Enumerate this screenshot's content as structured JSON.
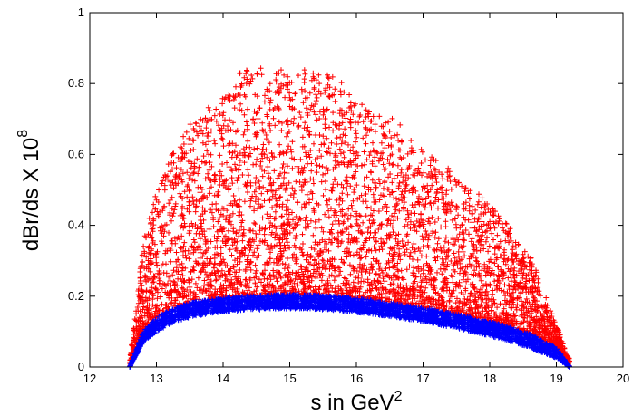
{
  "chart_data": {
    "type": "scatter",
    "title": "",
    "xlabel": "s in GeV",
    "xlabel_superscript": "2",
    "ylabel": "dBr/ds X  10",
    "ylabel_superscript": "8",
    "xlim": [
      12,
      20
    ],
    "ylim": [
      0,
      1
    ],
    "x_ticks": [
      12,
      13,
      14,
      15,
      16,
      17,
      18,
      19,
      20
    ],
    "y_ticks": [
      0,
      0.2,
      0.4,
      0.6,
      0.8,
      1
    ],
    "x_tick_labels": [
      "12",
      "13",
      "14",
      "15",
      "16",
      "17",
      "18",
      "19",
      "20"
    ],
    "y_tick_labels": [
      "0",
      "0.2",
      "0.4",
      "0.6",
      "0.8",
      "1"
    ],
    "grid": false,
    "legend": "none",
    "marker": "+",
    "s_min": 12.6,
    "s_max": 19.2,
    "series": [
      {
        "color": "#ff0000",
        "description_points": "scatter of sampled values between lower band and an upper envelope peaking near 0.85 at s≈15",
        "x": [
          12.6,
          12.8,
          13.0,
          13.3,
          13.6,
          14.0,
          14.3,
          14.7,
          15.0,
          15.3,
          15.5,
          15.8,
          16.2,
          16.6,
          17.0,
          17.4,
          17.8,
          18.2,
          18.6,
          19.0,
          19.2
        ],
        "upper_envelope": [
          0.02,
          0.35,
          0.5,
          0.64,
          0.71,
          0.76,
          0.85,
          0.84,
          0.84,
          0.84,
          0.85,
          0.8,
          0.72,
          0.7,
          0.62,
          0.56,
          0.5,
          0.42,
          0.32,
          0.12,
          0.02
        ]
      },
      {
        "color": "#0000ff",
        "x": [
          12.6,
          12.8,
          13.0,
          13.3,
          13.6,
          14.0,
          14.3,
          14.7,
          15.0,
          15.3,
          15.5,
          15.8,
          16.2,
          16.6,
          17.0,
          17.4,
          17.8,
          18.2,
          18.6,
          19.0,
          19.2
        ],
        "lower": [
          0.0,
          0.07,
          0.1,
          0.13,
          0.145,
          0.155,
          0.16,
          0.163,
          0.165,
          0.164,
          0.162,
          0.158,
          0.15,
          0.14,
          0.128,
          0.113,
          0.097,
          0.078,
          0.055,
          0.025,
          0.0
        ],
        "upper": [
          0.0,
          0.1,
          0.14,
          0.17,
          0.185,
          0.195,
          0.2,
          0.203,
          0.205,
          0.204,
          0.202,
          0.198,
          0.19,
          0.18,
          0.168,
          0.153,
          0.137,
          0.118,
          0.093,
          0.055,
          0.0
        ]
      }
    ]
  }
}
